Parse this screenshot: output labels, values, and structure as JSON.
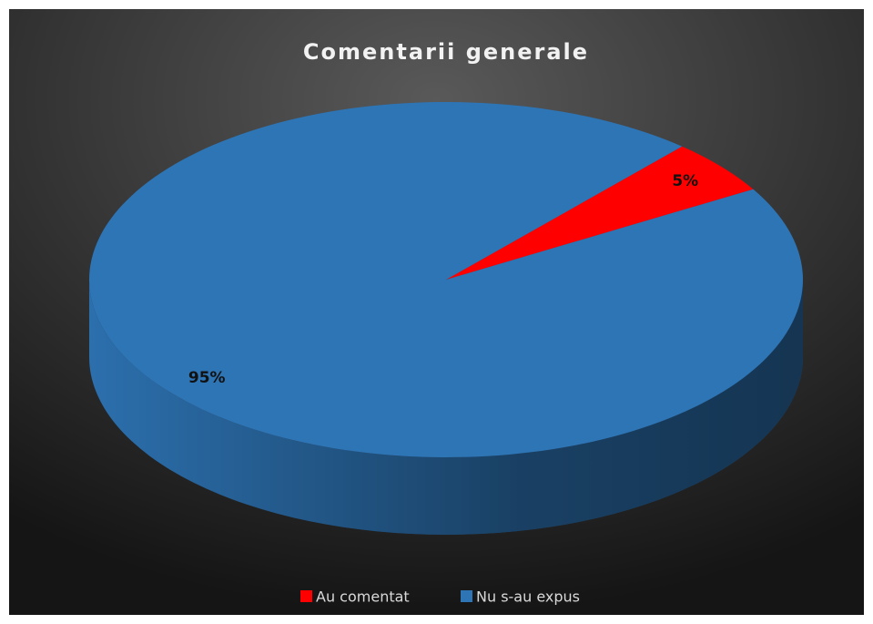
{
  "chart_data": {
    "type": "pie",
    "title": "Comentarii generale",
    "categories": [
      "Au comentat",
      "Nu s-au expus"
    ],
    "values": [
      5,
      95
    ],
    "value_labels": [
      "5%",
      "95%"
    ],
    "colors": [
      "#ff0000",
      "#2e75b6"
    ],
    "legend": "bottom"
  }
}
